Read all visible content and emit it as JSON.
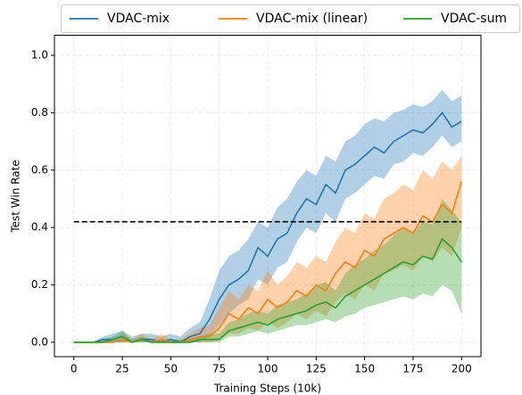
{
  "chart_data": {
    "type": "line",
    "xlabel": "Training Steps (10k)",
    "ylabel": "Test Win Rate",
    "x": [
      0,
      5,
      10,
      15,
      20,
      25,
      30,
      35,
      40,
      45,
      50,
      55,
      60,
      65,
      70,
      75,
      80,
      85,
      90,
      95,
      100,
      105,
      110,
      115,
      120,
      125,
      130,
      135,
      140,
      145,
      150,
      155,
      160,
      165,
      170,
      175,
      180,
      185,
      190,
      195,
      200
    ],
    "series": [
      {
        "name": "VDAC-mix",
        "color": "#1f77b4",
        "values": [
          0,
          0,
          0,
          0.01,
          0.01,
          0.02,
          0,
          0.01,
          0.01,
          0,
          0.01,
          0,
          0.02,
          0.03,
          0.08,
          0.15,
          0.2,
          0.22,
          0.25,
          0.33,
          0.3,
          0.36,
          0.38,
          0.45,
          0.5,
          0.48,
          0.55,
          0.52,
          0.6,
          0.62,
          0.65,
          0.68,
          0.66,
          0.7,
          0.72,
          0.74,
          0.73,
          0.76,
          0.8,
          0.75,
          0.77
        ],
        "lower": [
          0,
          0,
          0,
          0,
          0,
          0,
          0,
          0,
          0,
          0,
          0,
          0,
          0,
          0,
          0.02,
          0.06,
          0.1,
          0.13,
          0.15,
          0.22,
          0.2,
          0.26,
          0.28,
          0.35,
          0.4,
          0.38,
          0.45,
          0.42,
          0.5,
          0.52,
          0.55,
          0.58,
          0.57,
          0.62,
          0.63,
          0.66,
          0.65,
          0.68,
          0.72,
          0.68,
          0.7
        ],
        "upper": [
          0,
          0,
          0,
          0.02,
          0.03,
          0.04,
          0.02,
          0.03,
          0.03,
          0.02,
          0.03,
          0.02,
          0.05,
          0.07,
          0.15,
          0.25,
          0.3,
          0.32,
          0.36,
          0.42,
          0.4,
          0.47,
          0.5,
          0.56,
          0.6,
          0.58,
          0.65,
          0.63,
          0.7,
          0.72,
          0.76,
          0.78,
          0.77,
          0.8,
          0.81,
          0.83,
          0.82,
          0.84,
          0.88,
          0.84,
          0.86
        ]
      },
      {
        "name": "VDAC-mix (linear)",
        "color": "#ff7f0e",
        "values": [
          0,
          0,
          0,
          0,
          0,
          0.01,
          0,
          0.01,
          0,
          0.01,
          0,
          0,
          0.01,
          0.02,
          0.02,
          0.05,
          0.1,
          0.08,
          0.12,
          0.1,
          0.15,
          0.12,
          0.14,
          0.18,
          0.16,
          0.2,
          0.18,
          0.24,
          0.28,
          0.26,
          0.32,
          0.3,
          0.36,
          0.38,
          0.4,
          0.38,
          0.44,
          0.42,
          0.48,
          0.45,
          0.56
        ],
        "lower": [
          0,
          0,
          0,
          0,
          0,
          0,
          0,
          0,
          0,
          0,
          0,
          0,
          0,
          0,
          0,
          0.01,
          0.03,
          0.03,
          0.05,
          0.04,
          0.07,
          0.05,
          0.07,
          0.1,
          0.08,
          0.11,
          0.09,
          0.14,
          0.17,
          0.15,
          0.2,
          0.18,
          0.24,
          0.25,
          0.27,
          0.25,
          0.3,
          0.28,
          0.33,
          0.3,
          0.4
        ],
        "upper": [
          0,
          0,
          0,
          0.01,
          0.01,
          0.03,
          0.01,
          0.03,
          0.01,
          0.03,
          0.01,
          0.01,
          0.03,
          0.05,
          0.06,
          0.12,
          0.18,
          0.15,
          0.2,
          0.18,
          0.25,
          0.2,
          0.23,
          0.28,
          0.26,
          0.3,
          0.28,
          0.35,
          0.4,
          0.38,
          0.45,
          0.43,
          0.5,
          0.52,
          0.55,
          0.53,
          0.6,
          0.57,
          0.63,
          0.6,
          0.65
        ]
      },
      {
        "name": "VDAC-sum",
        "color": "#2ca02c",
        "values": [
          0,
          0,
          0,
          0,
          0.01,
          0.02,
          0,
          0.01,
          0,
          0,
          0,
          0,
          0,
          0.01,
          0.01,
          0.01,
          0.04,
          0.05,
          0.06,
          0.07,
          0.06,
          0.08,
          0.09,
          0.1,
          0.11,
          0.13,
          0.14,
          0.12,
          0.16,
          0.18,
          0.2,
          0.22,
          0.24,
          0.26,
          0.28,
          0.27,
          0.3,
          0.29,
          0.36,
          0.33,
          0.28
        ],
        "lower": [
          0,
          0,
          0,
          0,
          0,
          0,
          0,
          0,
          0,
          0,
          0,
          0,
          0,
          0,
          0,
          0,
          0.02,
          0.02,
          0.03,
          0.04,
          0.03,
          0.04,
          0.05,
          0.06,
          0.06,
          0.07,
          0.08,
          0.07,
          0.09,
          0.1,
          0.12,
          0.13,
          0.14,
          0.15,
          0.16,
          0.15,
          0.17,
          0.16,
          0.2,
          0.18,
          0.1
        ],
        "upper": [
          0,
          0,
          0,
          0.01,
          0.02,
          0.04,
          0.01,
          0.02,
          0.01,
          0.01,
          0.01,
          0.01,
          0.01,
          0.02,
          0.03,
          0.03,
          0.07,
          0.08,
          0.1,
          0.11,
          0.1,
          0.13,
          0.14,
          0.15,
          0.17,
          0.2,
          0.21,
          0.18,
          0.24,
          0.27,
          0.29,
          0.32,
          0.34,
          0.37,
          0.4,
          0.38,
          0.42,
          0.41,
          0.5,
          0.46,
          0.42
        ]
      }
    ],
    "reference_lines": [
      {
        "value": 0.42,
        "color": "#000000",
        "style": "dashed"
      }
    ],
    "xlim": [
      -10,
      210
    ],
    "ylim": [
      -0.05,
      1.07
    ],
    "xticks": [
      0,
      25,
      50,
      75,
      100,
      125,
      150,
      175,
      200
    ],
    "yticks": [
      {
        "value": 0,
        "label": "0.0"
      },
      0.2,
      0.4,
      0.6,
      0.8,
      {
        "value": 1,
        "label": "1.0"
      }
    ],
    "grid": true,
    "legend": "upper center"
  }
}
